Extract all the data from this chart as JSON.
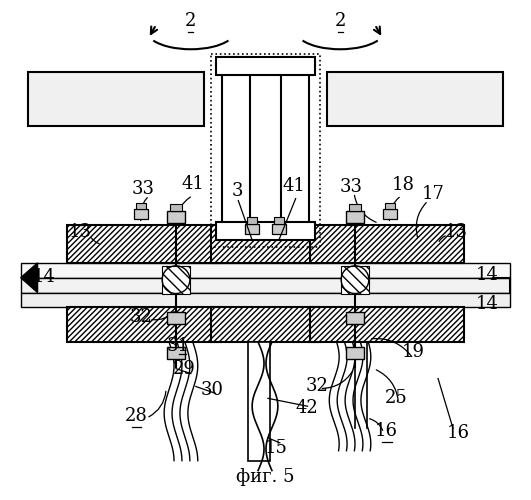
{
  "bg_color": "#ffffff",
  "fig_width": 5.31,
  "fig_height": 5.0,
  "dpi": 100,
  "caption": "фиг. 5"
}
